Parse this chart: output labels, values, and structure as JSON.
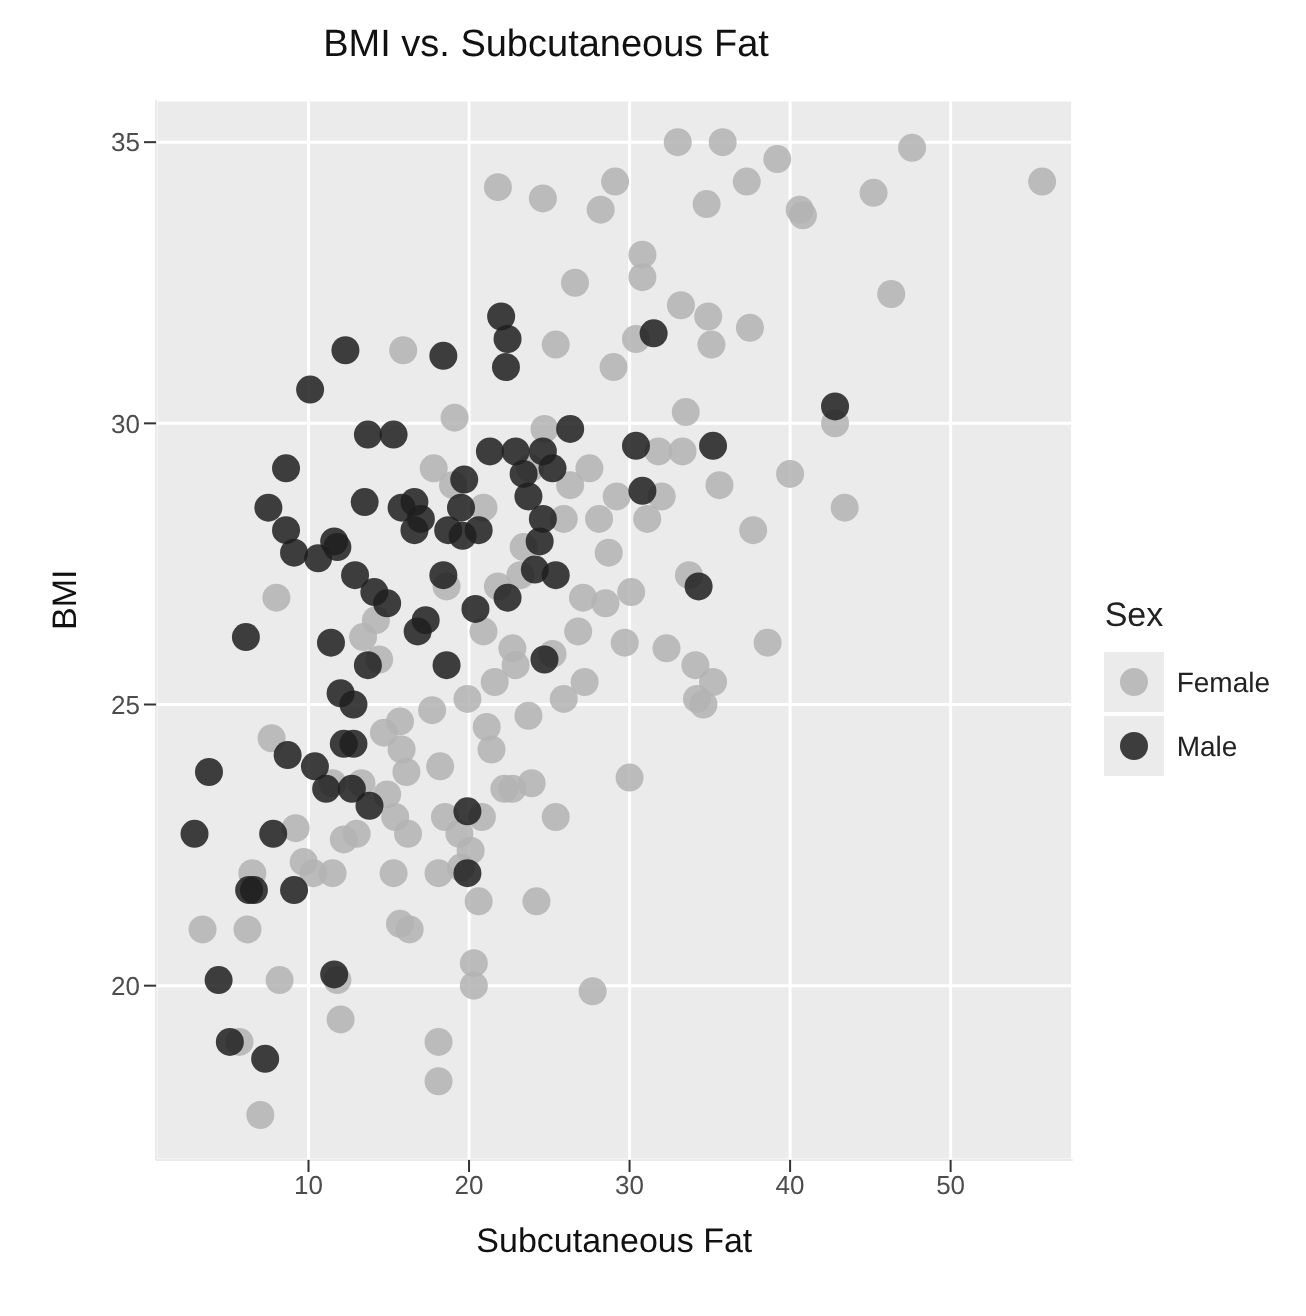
{
  "chart_data": {
    "type": "scatter",
    "title": "BMI vs. Subcutaneous Fat",
    "xlabel": "Subcutaneous Fat",
    "ylabel": "BMI",
    "legend_title": "Sex",
    "legend": "right",
    "grid": true,
    "marker": "circle",
    "xlim": [
      0.5,
      57.6
    ],
    "ylim": [
      16.9,
      35.75
    ],
    "xticks": [
      10,
      20,
      30,
      40,
      50
    ],
    "yticks": [
      20,
      25,
      30,
      35
    ],
    "series": [
      {
        "name": "Female",
        "color": "#b3b3b3",
        "x": [
          3.4,
          7.0,
          5.7,
          6.2,
          6.5,
          7.7,
          8.2,
          8.0,
          9.2,
          9.7,
          10.3,
          11.5,
          11.5,
          11.8,
          12.0,
          12.2,
          13.0,
          13.3,
          13.4,
          14.2,
          14.4,
          14.7,
          14.9,
          15.4,
          15.3,
          15.7,
          15.7,
          16.1,
          15.8,
          16.2,
          16.3,
          15.9,
          17.7,
          17.8,
          18.1,
          18.1,
          18.1,
          18.2,
          18.5,
          18.6,
          19.0,
          19.1,
          19.4,
          19.5,
          19.6,
          19.9,
          20.1,
          20.3,
          20.3,
          20.6,
          20.8,
          20.9,
          20.9,
          21.1,
          21.4,
          21.6,
          21.8,
          21.8,
          22.2,
          22.7,
          22.7,
          22.9,
          23.2,
          23.4,
          23.7,
          23.8,
          23.9,
          24.2,
          24.6,
          24.7,
          25.2,
          25.4,
          25.4,
          25.9,
          25.9,
          26.3,
          26.6,
          26.8,
          27.1,
          27.2,
          27.5,
          27.7,
          28.1,
          28.2,
          28.5,
          28.7,
          29.0,
          29.1,
          29.2,
          29.7,
          30.0,
          30.1,
          30.4,
          30.8,
          30.8,
          31.1,
          31.8,
          32.0,
          32.3,
          33.0,
          33.2,
          33.3,
          33.5,
          33.7,
          34.1,
          34.2,
          34.6,
          34.8,
          34.9,
          35.1,
          35.2,
          35.8,
          35.6,
          37.3,
          37.5,
          37.7,
          38.6,
          39.2,
          40.0,
          40.6,
          40.8,
          42.8,
          43.4,
          45.2,
          46.3,
          47.6,
          55.7
        ],
        "values": [
          21.0,
          17.7,
          19.0,
          21.0,
          22.0,
          24.4,
          20.1,
          26.9,
          22.8,
          22.2,
          22.0,
          22.0,
          23.6,
          20.1,
          19.4,
          22.6,
          22.7,
          23.6,
          26.2,
          26.5,
          25.8,
          24.5,
          23.4,
          23.0,
          22.0,
          21.1,
          24.7,
          23.8,
          24.2,
          22.7,
          21.0,
          31.3,
          24.9,
          29.2,
          22.0,
          19.0,
          18.3,
          23.9,
          23.0,
          27.1,
          28.9,
          30.1,
          22.7,
          22.1,
          null,
          25.1,
          22.4,
          20.4,
          20.0,
          21.5,
          23.0,
          26.3,
          28.5,
          24.6,
          24.2,
          25.4,
          34.2,
          27.1,
          23.5,
          26.0,
          23.5,
          25.7,
          27.3,
          27.8,
          24.8,
          29.2,
          23.6,
          21.5,
          34.0,
          29.9,
          25.9,
          31.4,
          23.0,
          28.3,
          25.1,
          28.9,
          32.5,
          26.3,
          26.9,
          25.4,
          29.2,
          19.9,
          28.3,
          33.8,
          26.8,
          27.7,
          31.0,
          34.3,
          28.7,
          26.1,
          23.7,
          27.0,
          31.5,
          33.0,
          32.6,
          28.3,
          29.5,
          28.7,
          26.0,
          35.0,
          32.1,
          29.5,
          30.2,
          27.3,
          25.7,
          25.1,
          25.0,
          33.9,
          31.9,
          31.4,
          25.4,
          35.0,
          28.9,
          34.3,
          31.7,
          28.1,
          26.1,
          34.7,
          29.1,
          33.8,
          33.7,
          30.0,
          28.5,
          34.1,
          32.3,
          34.9,
          34.3
        ]
      },
      {
        "name": "Male",
        "color": "#1f1f1f",
        "x": [
          2.9,
          3.8,
          4.4,
          5.1,
          6.1,
          6.3,
          6.6,
          7.3,
          7.5,
          7.8,
          8.6,
          8.7,
          8.6,
          9.1,
          9.1,
          10.1,
          10.4,
          10.6,
          11.1,
          11.6,
          11.4,
          11.6,
          11.8,
          12.0,
          12.2,
          12.7,
          12.8,
          12.8,
          12.3,
          12.9,
          13.5,
          13.7,
          13.7,
          13.8,
          14.1,
          14.9,
          15.3,
          15.8,
          16.6,
          16.6,
          16.8,
          17.0,
          17.3,
          18.4,
          18.4,
          18.6,
          18.7,
          19.5,
          19.7,
          19.6,
          19.9,
          19.9,
          20.4,
          20.6,
          21.3,
          22.0,
          22.3,
          22.4,
          22.4,
          22.9,
          23.4,
          23.7,
          24.1,
          24.4,
          24.6,
          24.6,
          24.7,
          25.2,
          25.4,
          26.3,
          30.4,
          30.8,
          31.5,
          35.2,
          34.3,
          42.8
        ],
        "values": [
          22.7,
          23.8,
          20.1,
          19.0,
          26.2,
          21.7,
          21.7,
          18.7,
          28.5,
          22.7,
          29.2,
          24.1,
          28.1,
          27.7,
          21.7,
          30.6,
          23.9,
          27.6,
          23.5,
          27.9,
          26.1,
          20.2,
          27.8,
          25.2,
          24.3,
          23.5,
          24.3,
          25.0,
          31.3,
          27.3,
          28.6,
          29.8,
          25.7,
          23.2,
          27.0,
          26.8,
          29.8,
          28.5,
          28.6,
          28.1,
          26.3,
          28.3,
          26.5,
          31.2,
          27.3,
          25.7,
          28.1,
          28.5,
          29.0,
          28.0,
          23.1,
          22.0,
          26.7,
          28.1,
          29.5,
          31.9,
          31.0,
          31.5,
          26.9,
          29.5,
          29.1,
          28.7,
          27.4,
          27.9,
          29.5,
          28.3,
          25.8,
          29.2,
          27.3,
          29.9,
          29.6,
          28.8,
          31.6,
          29.6,
          27.1,
          30.3
        ]
      }
    ]
  }
}
